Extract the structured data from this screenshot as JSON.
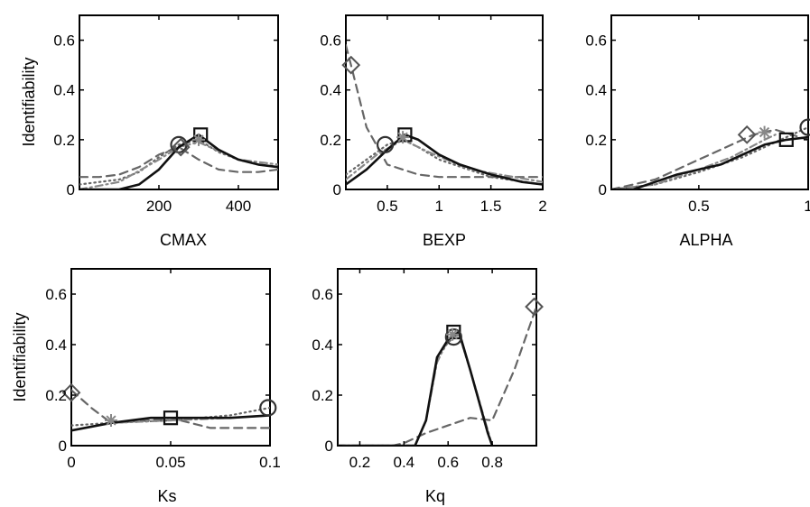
{
  "chart_data": [
    {
      "type": "line",
      "xlabel": "CMAX",
      "ylabel": "Identifiability",
      "xlim": [
        0,
        500
      ],
      "ylim": [
        0,
        0.7
      ],
      "xticks": [
        200,
        400
      ],
      "xtick_labels": [
        "200",
        "400"
      ],
      "yticks": [
        0,
        0.2,
        0.4,
        0.6
      ],
      "ytick_labels": [
        "0",
        "0.2",
        "0.4",
        "0.6"
      ],
      "series": [
        {
          "style": "solid",
          "color": "#111111",
          "x": [
            0,
            100,
            150,
            200,
            250,
            300,
            350,
            400,
            450,
            500
          ],
          "y": [
            0,
            0,
            0.02,
            0.08,
            0.17,
            0.22,
            0.16,
            0.12,
            0.1,
            0.09
          ],
          "marker": "square",
          "marker_at": [
            305,
            0.22
          ]
        },
        {
          "style": "dotted",
          "color": "#666666",
          "x": [
            0,
            100,
            150,
            200,
            250,
            300,
            350,
            400,
            450,
            500
          ],
          "y": [
            0.02,
            0.04,
            0.07,
            0.13,
            0.18,
            0.2,
            0.15,
            0.12,
            0.1,
            0.09
          ],
          "marker": "circle",
          "marker_at": [
            250,
            0.18
          ]
        },
        {
          "style": "dashdot",
          "color": "#888888",
          "x": [
            0,
            100,
            200,
            250,
            300,
            400,
            500
          ],
          "y": [
            0,
            0.03,
            0.12,
            0.17,
            0.19,
            0.12,
            0.1
          ],
          "marker": "asterisk",
          "marker_at": [
            300,
            0.2
          ]
        },
        {
          "style": "dashed",
          "color": "#666666",
          "x": [
            0,
            50,
            100,
            150,
            200,
            250,
            300,
            350,
            400,
            450,
            500
          ],
          "y": [
            0.05,
            0.05,
            0.06,
            0.09,
            0.14,
            0.17,
            0.12,
            0.08,
            0.07,
            0.07,
            0.08
          ],
          "marker": "diamond",
          "marker_at": [
            255,
            0.17
          ]
        }
      ]
    },
    {
      "type": "line",
      "xlabel": "BEXP",
      "ylabel": "",
      "xlim": [
        0.1,
        2
      ],
      "ylim": [
        0,
        0.7
      ],
      "xticks": [
        0.5,
        1,
        1.5,
        2
      ],
      "xtick_labels": [
        "0.5",
        "1",
        "1.5",
        "2"
      ],
      "yticks": [
        0,
        0.2,
        0.4,
        0.6
      ],
      "ytick_labels": [
        "0",
        "0.2",
        "0.4",
        "0.6"
      ],
      "series": [
        {
          "style": "solid",
          "color": "#111111",
          "x": [
            0.1,
            0.3,
            0.5,
            0.67,
            0.8,
            1.0,
            1.2,
            1.5,
            1.8,
            2.0
          ],
          "y": [
            0.02,
            0.08,
            0.16,
            0.22,
            0.2,
            0.14,
            0.1,
            0.06,
            0.03,
            0.02
          ],
          "marker": "square",
          "marker_at": [
            0.67,
            0.22
          ]
        },
        {
          "style": "dotted",
          "color": "#666666",
          "x": [
            0.1,
            0.3,
            0.5,
            0.65,
            0.8,
            1.0,
            1.5,
            2.0
          ],
          "y": [
            0.06,
            0.12,
            0.18,
            0.2,
            0.17,
            0.12,
            0.05,
            0.02
          ],
          "marker": "circle",
          "marker_at": [
            0.48,
            0.18
          ]
        },
        {
          "style": "dashdot",
          "color": "#888888",
          "x": [
            0.1,
            0.4,
            0.65,
            0.9,
            1.3,
            2.0
          ],
          "y": [
            0.04,
            0.14,
            0.2,
            0.15,
            0.08,
            0.03
          ],
          "marker": "asterisk",
          "marker_at": [
            0.65,
            0.21
          ]
        },
        {
          "style": "dashed",
          "color": "#666666",
          "x": [
            0.1,
            0.15,
            0.3,
            0.5,
            0.8,
            1.0,
            1.5,
            2.0
          ],
          "y": [
            0.58,
            0.5,
            0.25,
            0.1,
            0.06,
            0.05,
            0.05,
            0.05
          ],
          "marker": "diamond",
          "marker_at": [
            0.15,
            0.5
          ]
        }
      ]
    },
    {
      "type": "line",
      "xlabel": "ALPHA",
      "ylabel": "",
      "xlim": [
        0.1,
        1
      ],
      "ylim": [
        0,
        0.7
      ],
      "xticks": [
        0.5,
        1
      ],
      "xtick_labels": [
        "0.5",
        "1"
      ],
      "yticks": [
        0,
        0.2,
        0.4,
        0.6
      ],
      "ytick_labels": [
        "0",
        "0.2",
        "0.4",
        "0.6"
      ],
      "series": [
        {
          "style": "solid",
          "color": "#111111",
          "x": [
            0.1,
            0.2,
            0.3,
            0.4,
            0.5,
            0.6,
            0.7,
            0.8,
            0.9,
            1.0
          ],
          "y": [
            0,
            0,
            0.03,
            0.06,
            0.08,
            0.1,
            0.14,
            0.18,
            0.2,
            0.21
          ],
          "marker": "square",
          "marker_at": [
            0.9,
            0.2
          ]
        },
        {
          "style": "dotted",
          "color": "#666666",
          "x": [
            0.1,
            0.3,
            0.5,
            0.7,
            0.85,
            1.0
          ],
          "y": [
            0,
            0.02,
            0.07,
            0.13,
            0.19,
            0.25
          ],
          "marker": "circle",
          "marker_at": [
            1.0,
            0.25
          ]
        },
        {
          "style": "dashdot",
          "color": "#888888",
          "x": [
            0.1,
            0.3,
            0.5,
            0.65,
            0.8,
            0.85
          ],
          "y": [
            0,
            0.02,
            0.08,
            0.13,
            0.2,
            0.22
          ],
          "marker": "asterisk",
          "marker_at": [
            0.8,
            0.23
          ]
        },
        {
          "style": "dashed",
          "color": "#666666",
          "x": [
            0.1,
            0.3,
            0.5,
            0.7,
            0.75,
            0.85,
            1.0
          ],
          "y": [
            0,
            0.04,
            0.12,
            0.2,
            0.22,
            0.24,
            0.2
          ],
          "marker": "diamond",
          "marker_at": [
            0.72,
            0.22
          ]
        }
      ]
    },
    {
      "type": "line",
      "xlabel": "Ks",
      "ylabel": "Identifiability",
      "xlim": [
        0,
        0.1
      ],
      "ylim": [
        0,
        0.7
      ],
      "xticks": [
        0,
        0.05,
        0.1
      ],
      "xtick_labels": [
        "0",
        "0.05",
        "0.1"
      ],
      "yticks": [
        0,
        0.2,
        0.4,
        0.6
      ],
      "ytick_labels": [
        "0",
        "0.2",
        "0.4",
        "0.6"
      ],
      "series": [
        {
          "style": "solid",
          "color": "#111111",
          "x": [
            0,
            0.02,
            0.04,
            0.05,
            0.06,
            0.08,
            0.1
          ],
          "y": [
            0.06,
            0.09,
            0.11,
            0.11,
            0.11,
            0.11,
            0.12
          ],
          "marker": "square",
          "marker_at": [
            0.05,
            0.11
          ]
        },
        {
          "style": "dotted",
          "color": "#666666",
          "x": [
            0,
            0.02,
            0.05,
            0.08,
            0.1
          ],
          "y": [
            0.08,
            0.09,
            0.1,
            0.12,
            0.15
          ],
          "marker": "circle",
          "marker_at": [
            0.099,
            0.15
          ]
        },
        {
          "style": "dashdot",
          "color": "#888888",
          "x": [
            0,
            0.02,
            0.05,
            0.08,
            0.1
          ],
          "y": [
            0.06,
            0.09,
            0.1,
            0.11,
            0.12
          ],
          "marker": "asterisk",
          "marker_at": [
            0.02,
            0.1
          ]
        },
        {
          "style": "dashed",
          "color": "#666666",
          "x": [
            0,
            0.01,
            0.02,
            0.04,
            0.05,
            0.06,
            0.07,
            0.1
          ],
          "y": [
            0.22,
            0.15,
            0.09,
            0.1,
            0.11,
            0.09,
            0.07,
            0.07
          ],
          "marker": "diamond",
          "marker_at": [
            0,
            0.21
          ]
        }
      ]
    },
    {
      "type": "line",
      "xlabel": "Kq",
      "ylabel": "",
      "xlim": [
        0.1,
        1
      ],
      "ylim": [
        0,
        0.7
      ],
      "xticks": [
        0.2,
        0.4,
        0.6,
        0.8
      ],
      "xtick_labels": [
        "0.2",
        "0.4",
        "0.6",
        "0.8"
      ],
      "yticks": [
        0,
        0.2,
        0.4,
        0.6
      ],
      "ytick_labels": [
        "0",
        "0.2",
        "0.4",
        "0.6"
      ],
      "series": [
        {
          "style": "solid",
          "color": "#111111",
          "x": [
            0.1,
            0.3,
            0.45,
            0.5,
            0.55,
            0.6,
            0.65,
            0.7,
            0.78,
            0.8
          ],
          "y": [
            0,
            0,
            0,
            0.1,
            0.35,
            0.42,
            0.45,
            0.3,
            0.05,
            0
          ],
          "marker": "square",
          "marker_at": [
            0.625,
            0.45
          ]
        },
        {
          "style": "dotted",
          "color": "#666666",
          "x": [
            0.1,
            0.45,
            0.5,
            0.55,
            0.6,
            0.65,
            0.7,
            0.78,
            0.8
          ],
          "y": [
            0,
            0,
            0.1,
            0.34,
            0.41,
            0.44,
            0.3,
            0.05,
            0
          ],
          "marker": "circle",
          "marker_at": [
            0.625,
            0.43
          ]
        },
        {
          "style": "dashdot",
          "color": "#888888",
          "x": [
            0.1,
            0.45,
            0.5,
            0.55,
            0.6,
            0.65,
            0.7,
            0.8
          ],
          "y": [
            0,
            0,
            0.1,
            0.33,
            0.42,
            0.44,
            0.3,
            0
          ],
          "marker": "asterisk",
          "marker_at": [
            0.62,
            0.44
          ]
        },
        {
          "style": "dashed",
          "color": "#666666",
          "x": [
            0.1,
            0.35,
            0.4,
            0.5,
            0.6,
            0.7,
            0.8,
            0.9,
            1.0
          ],
          "y": [
            0,
            0,
            0.01,
            0.05,
            0.08,
            0.11,
            0.1,
            0.3,
            0.55
          ],
          "marker": "diamond",
          "marker_at": [
            0.99,
            0.55
          ]
        }
      ]
    }
  ]
}
